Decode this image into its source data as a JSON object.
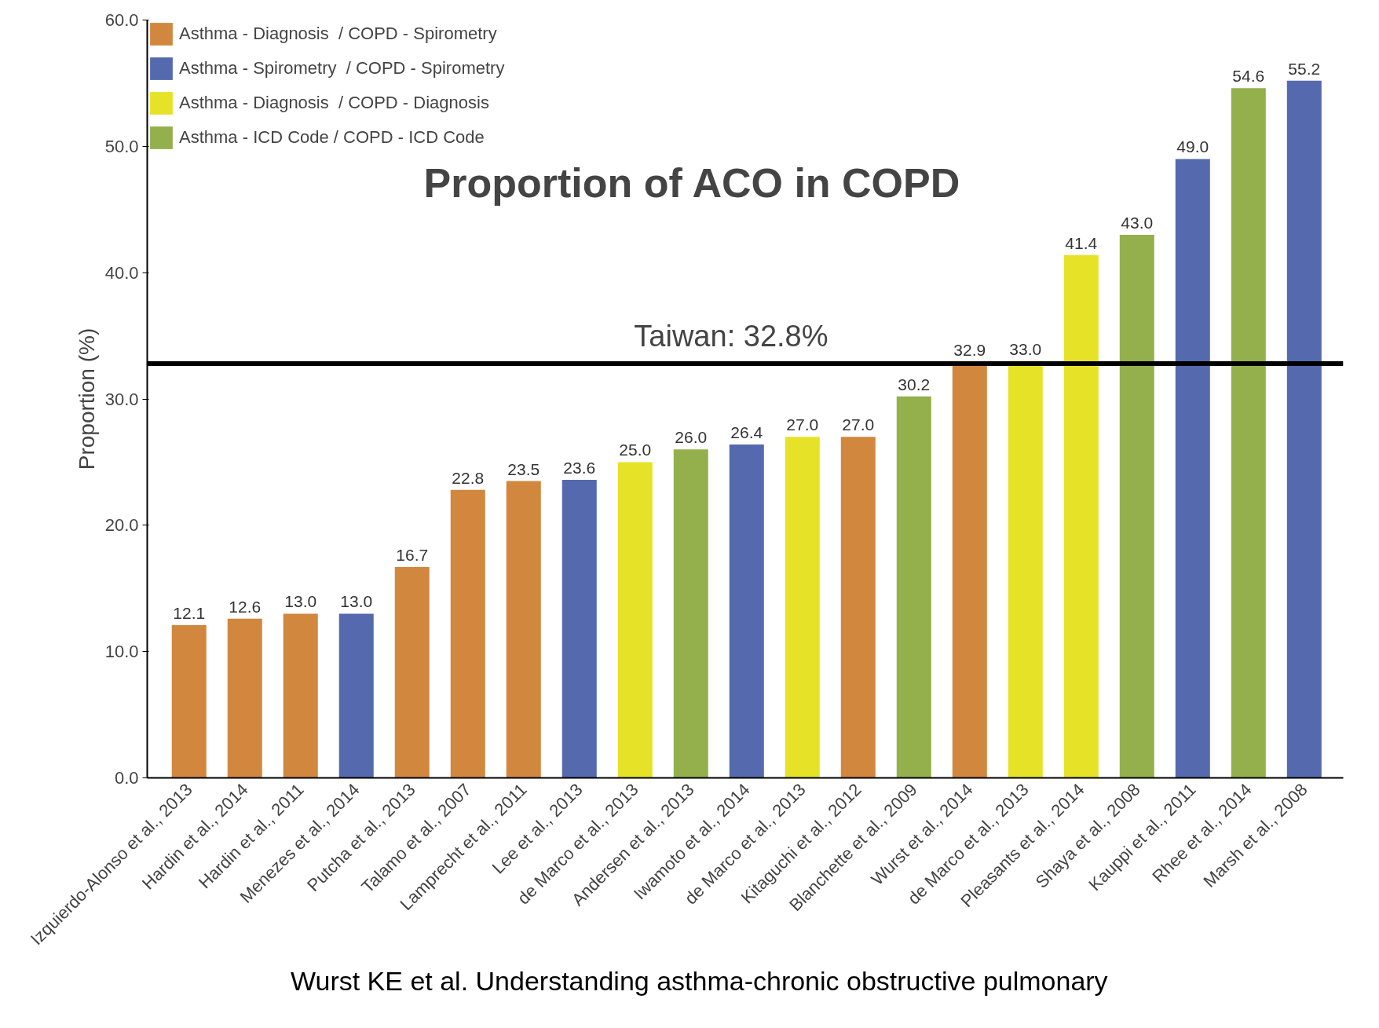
{
  "chart_data": {
    "type": "bar",
    "title": "Proportion of ACO in COPD",
    "ylabel": "Proportion (%)",
    "categories": [
      "Izquierdo-Alonso et al., 2013",
      "Hardin et al., 2014",
      "Hardin et al., 2011",
      "Menezes et al., 2014",
      "Putcha et al., 2013",
      "Talamo et al., 2007",
      "Lamprecht et al., 2011",
      "Lee et al., 2013",
      "de Marco et al., 2013",
      "Andersen et al., 2013",
      "Iwamoto et al., 2014",
      "de Marco et al., 2013",
      "Kitaguchi et al., 2012",
      "Blanchette et al., 2009",
      "Wurst et al., 2014",
      "de Marco et al., 2013",
      "Pleasants et al., 2014",
      "Shaya et al., 2008",
      "Kauppi et al., 2011",
      "Rhee et al., 2014",
      "Marsh et al., 2008"
    ],
    "series": [
      {
        "name": "Asthma - Diagnosis  / COPD - Spirometry",
        "color": "#d2873f",
        "values": [
          12.1,
          12.6,
          13.0,
          null,
          16.7,
          22.8,
          23.5,
          null,
          null,
          null,
          null,
          null,
          27.0,
          null,
          32.9,
          null,
          null,
          null,
          null,
          null,
          null
        ],
        "value_labels": [
          "12.1",
          "12.6",
          "13.0",
          null,
          "16.7",
          "22.8",
          "23.5",
          null,
          null,
          null,
          null,
          null,
          "27.0",
          null,
          "32.9",
          null,
          null,
          null,
          null,
          null,
          null
        ]
      },
      {
        "name": "Asthma - Spirometry  / COPD - Spirometry",
        "color": "#556aae",
        "values": [
          null,
          null,
          null,
          13.0,
          null,
          null,
          null,
          23.6,
          null,
          null,
          26.4,
          null,
          null,
          null,
          null,
          null,
          null,
          null,
          49.0,
          null,
          55.2
        ],
        "value_labels": [
          null,
          null,
          null,
          "13.0",
          null,
          null,
          null,
          "23.6",
          null,
          null,
          "26.4",
          null,
          null,
          null,
          null,
          null,
          null,
          null,
          "49.0",
          null,
          "55.2"
        ]
      },
      {
        "name": "Asthma - Diagnosis  / COPD - Diagnosis",
        "color": "#e6e227",
        "values": [
          null,
          null,
          null,
          null,
          null,
          null,
          null,
          null,
          25.0,
          null,
          null,
          27.0,
          null,
          null,
          null,
          33.0,
          41.4,
          null,
          null,
          null,
          null
        ],
        "value_labels": [
          null,
          null,
          null,
          null,
          null,
          null,
          null,
          null,
          "25.0",
          null,
          null,
          "27.0",
          null,
          null,
          null,
          "33.0",
          "41.4",
          null,
          null,
          null,
          null
        ]
      },
      {
        "name": "Asthma - ICD Code / COPD - ICD Code",
        "color": "#93b04c",
        "values": [
          null,
          null,
          null,
          null,
          null,
          null,
          null,
          null,
          null,
          26.0,
          null,
          null,
          null,
          30.2,
          null,
          null,
          null,
          43.0,
          null,
          54.6,
          null
        ],
        "value_labels": [
          null,
          null,
          null,
          null,
          null,
          null,
          null,
          null,
          null,
          "26.0",
          null,
          null,
          null,
          "30.2",
          null,
          null,
          null,
          "43.0",
          null,
          "54.6",
          null
        ]
      }
    ],
    "ylim": [
      0,
      60
    ],
    "yticks": [
      {
        "value": 0,
        "label": "0.0"
      },
      {
        "value": 10,
        "label": "10.0"
      },
      {
        "value": 20,
        "label": "20.0"
      },
      {
        "value": 30,
        "label": "30.0"
      },
      {
        "value": 40,
        "label": "40.0"
      },
      {
        "value": 50,
        "label": "50.0"
      },
      {
        "value": 60,
        "label": "60.0"
      }
    ],
    "ref_lines": [
      {
        "axis": "y",
        "value": 32.8,
        "label": "Taiwan: 32.8%",
        "color": "#000000"
      }
    ],
    "annotations": [
      "Wurst KE et al. Understanding asthma-chronic obstructive pulmonary"
    ],
    "legend": "top left",
    "grid": false
  }
}
